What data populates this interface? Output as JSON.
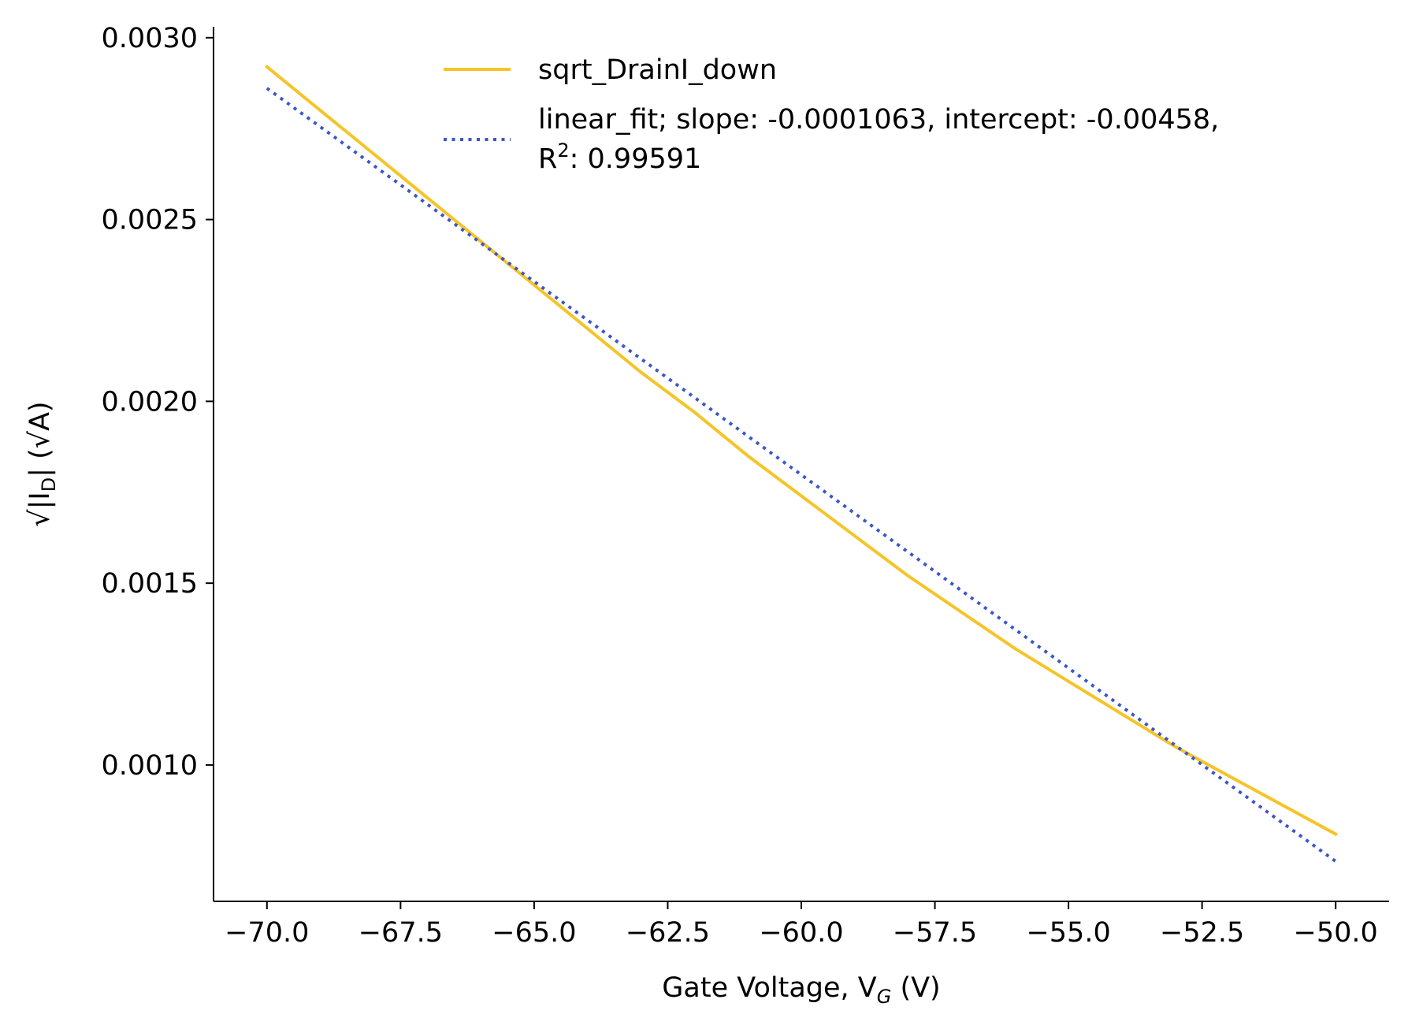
{
  "chart_data": {
    "type": "line",
    "title": "",
    "xlabel": "Gate Voltage, V",
    "xlabel_sub": "G",
    "xlabel_unit": " (V)",
    "ylabel": "√|I",
    "ylabel_sub": "D",
    "ylabel_rest": "| (√A)",
    "xlim": [
      -71.0,
      -49.0
    ],
    "ylim": [
      0.000625,
      0.00303
    ],
    "grid": false,
    "legend_position": "top-center",
    "x_ticks": [
      -70.0,
      -67.5,
      -65.0,
      -62.5,
      -60.0,
      -57.5,
      -55.0,
      -52.5,
      -50.0
    ],
    "x_tick_labels": [
      "−70.0",
      "−67.5",
      "−65.0",
      "−62.5",
      "−60.0",
      "−57.5",
      "−55.0",
      "−52.5",
      "−50.0"
    ],
    "y_ticks": [
      0.001,
      0.0015,
      0.002,
      0.0025,
      0.003
    ],
    "y_tick_labels": [
      "0.0010",
      "0.0015",
      "0.0020",
      "0.0025",
      "0.0030"
    ],
    "series": [
      {
        "name": "sqrt_DrainI_down",
        "color": "#f5c428",
        "style": "solid",
        "x": [
          -70,
          -69,
          -68,
          -67,
          -66,
          -65,
          -64,
          -63,
          -62,
          -61,
          -60,
          -59,
          -58,
          -57,
          -56,
          -55,
          -54,
          -53,
          -52,
          -51,
          -50
        ],
        "y": [
          0.00292,
          0.0028,
          0.00268,
          0.00256,
          0.00244,
          0.00232,
          0.0022,
          0.00208,
          0.00197,
          0.00185,
          0.00174,
          0.00163,
          0.00152,
          0.00142,
          0.00132,
          0.00123,
          0.00114,
          0.00105,
          0.00097,
          0.00089,
          0.00081
        ]
      },
      {
        "name": "linear_fit; slope: -0.0001063, intercept: -0.00458,",
        "name_line2_prefix": "R",
        "name_line2_sup": "2",
        "name_line2_rest": ": 0.99591",
        "color": "#3d55c8",
        "style": "dotted",
        "x": [
          -70.0,
          -50.0
        ],
        "y": [
          0.002861,
          0.000735
        ]
      }
    ]
  }
}
